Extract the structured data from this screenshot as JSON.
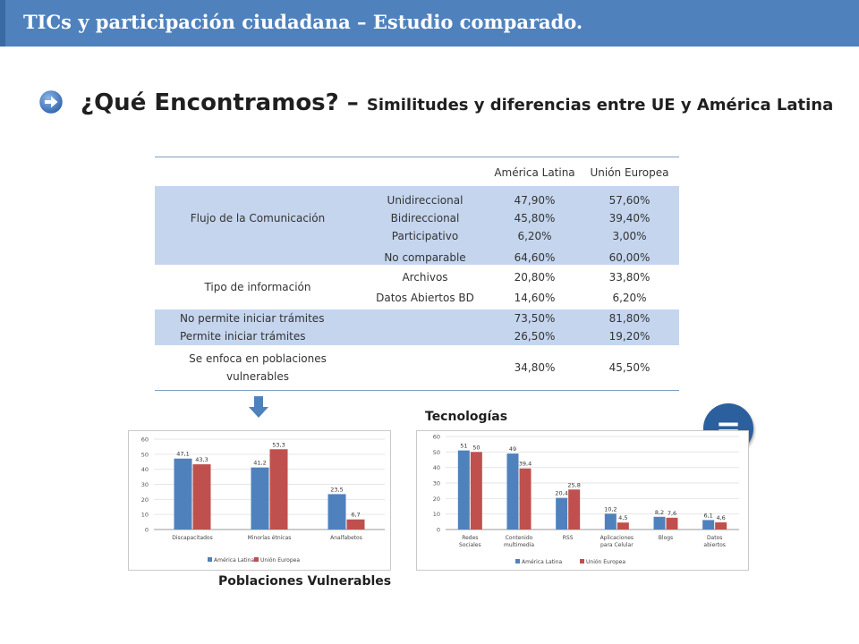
{
  "header": {
    "title": "TICs y participación ciudadana – Estudio comparado."
  },
  "heading": {
    "main": "¿Qué Encontramos?",
    "separator": " – ",
    "sub": "Similitudes y diferencias entre UE y América Latina"
  },
  "table": {
    "columns": [
      "América Latina",
      "Unión Europea"
    ],
    "groups": [
      {
        "label": "Flujo de la Comunicación",
        "rows": [
          {
            "sub": "Unidireccional",
            "al": "47,90%",
            "ue": "57,60%"
          },
          {
            "sub": "Bidireccional",
            "al": "45,80%",
            "ue": "39,40%"
          },
          {
            "sub": "Participativo",
            "al": "6,20%",
            "ue": "3,00%"
          },
          {
            "sub": "No comparable",
            "al": "64,60%",
            "ue": "60,00%"
          }
        ]
      },
      {
        "label": "Tipo de información",
        "rows": [
          {
            "sub": "Archivos",
            "al": "20,80%",
            "ue": "33,80%"
          },
          {
            "sub": "Datos Abiertos BD",
            "al": "14,60%",
            "ue": "6,20%"
          }
        ]
      },
      {
        "rows": [
          {
            "label": "No permite iniciar trámites",
            "al": "73,50%",
            "ue": "81,80%"
          },
          {
            "label": "Permite iniciar trámites",
            "al": "26,50%",
            "ue": "19,20%"
          }
        ]
      },
      {
        "rows": [
          {
            "label": "Se enfoca en poblaciones vulnerables",
            "al": "34,80%",
            "ue": "45,50%"
          }
        ]
      }
    ]
  },
  "captions": {
    "tecnologias": "Tecnologías",
    "poblaciones": "Poblaciones Vulnerables"
  },
  "equal_symbol": "=",
  "colors": {
    "header": "#4f81bd",
    "table_band": "#c5d5ee",
    "series_al": "#4f81bd",
    "series_ue": "#c0504d",
    "equal": "#2b5f9e"
  },
  "chart_data": [
    {
      "type": "bar",
      "categories": [
        "Discapacitados",
        "Minorías étnicas",
        "Analfabetos"
      ],
      "series": [
        {
          "name": "América Latina",
          "values": [
            47.1,
            41.2,
            23.5
          ],
          "labels": [
            "47,1",
            "41,2",
            "23,5"
          ]
        },
        {
          "name": "Unión Europea",
          "values": [
            43.3,
            53.3,
            6.7
          ],
          "labels": [
            "43,3",
            "53,3",
            "6,7"
          ]
        }
      ],
      "ylim": [
        0,
        60
      ],
      "yticks": [
        "0",
        "10",
        "20",
        "30",
        "40",
        "50",
        "60"
      ],
      "legend": "bottom"
    },
    {
      "type": "bar",
      "categories": [
        "Redes Sociales",
        "Contenido multimedia",
        "RSS",
        "Aplicaciones para Celular",
        "Blogs",
        "Datos abiertos"
      ],
      "series": [
        {
          "name": "América Latina",
          "values": [
            51,
            49,
            20.4,
            10.2,
            8.2,
            6.1
          ],
          "labels": [
            "51",
            "49",
            "20,4",
            "10,2",
            "8,2",
            "6,1"
          ]
        },
        {
          "name": "Unión Europea",
          "values": [
            50,
            39.4,
            25.8,
            4.5,
            7.6,
            4.6
          ],
          "labels": [
            "50",
            "39,4",
            "25,8",
            "4,5",
            "7,6",
            "4,6"
          ]
        }
      ],
      "ylim": [
        0,
        60
      ],
      "yticks": [
        "0",
        "10",
        "20",
        "30",
        "40",
        "50",
        "60"
      ],
      "legend": "bottom"
    }
  ]
}
